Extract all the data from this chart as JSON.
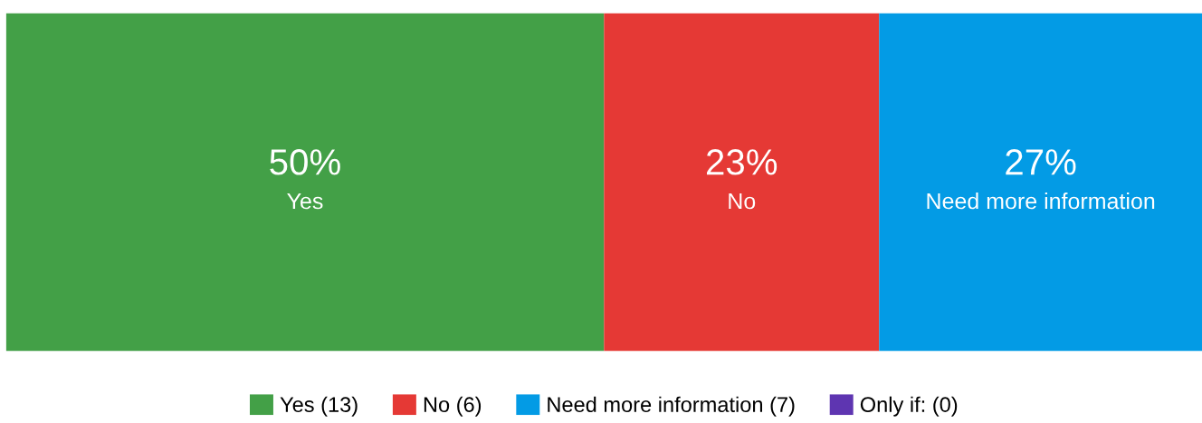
{
  "chart_data": {
    "type": "bar",
    "orientation": "horizontal",
    "stacked": true,
    "categories": [
      null
    ],
    "xlim": [
      0,
      100
    ],
    "tick_labels": false,
    "grid": false,
    "legend": "bottom",
    "series": [
      {
        "name": "Yes (13)",
        "color": "#43a047",
        "values": [
          50
        ],
        "value_labels": [
          "50%\nYes"
        ]
      },
      {
        "name": "No (6)",
        "color": "#e53935",
        "values": [
          23
        ],
        "value_labels": [
          "23%\nNo"
        ]
      },
      {
        "name": "Need more information (7)",
        "color": "#039be5",
        "values": [
          27
        ],
        "value_labels": [
          "27%\nNeed more information"
        ]
      },
      {
        "name": "Only if: (0)",
        "color": "#5e35b1",
        "values": [
          0
        ],
        "value_labels": [
          null
        ]
      }
    ]
  }
}
